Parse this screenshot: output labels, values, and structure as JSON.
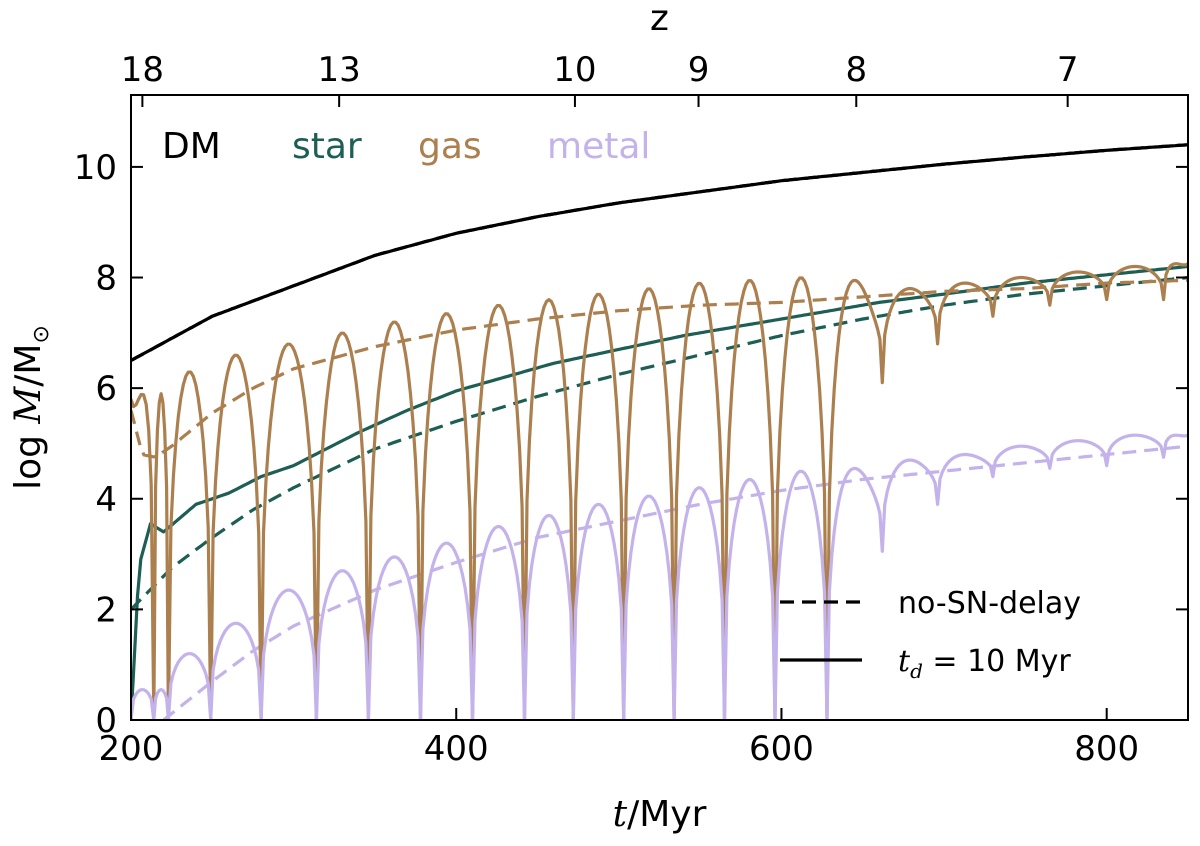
{
  "chart_data": {
    "type": "line",
    "xlabel_pre": "t",
    "xlabel_post": "/Myr",
    "ylabel_pre": "log",
    "ylabel_var": "M",
    "ylabel_post": "/M",
    "ylabel_sub": "⊙",
    "top_axis_label": "z",
    "xlim": [
      200,
      850
    ],
    "ylim": [
      0,
      11.3
    ],
    "x_ticks": [
      200,
      400,
      600,
      800
    ],
    "x_tick_labels": [
      "200",
      "400",
      "600",
      "800"
    ],
    "y_ticks": [
      0,
      2,
      4,
      6,
      8,
      10
    ],
    "y_tick_labels": [
      "0",
      "2",
      "4",
      "6",
      "8",
      "10"
    ],
    "top_ticks": [
      {
        "label": "18",
        "t": 207
      },
      {
        "label": "13",
        "t": 328
      },
      {
        "label": "10",
        "t": 473
      },
      {
        "label": "9",
        "t": 549
      },
      {
        "label": "8",
        "t": 646
      },
      {
        "label": "7",
        "t": 776
      }
    ],
    "component_labels": [
      {
        "name": "DM",
        "color": "#000000"
      },
      {
        "name": "star",
        "color": "#1d5e55"
      },
      {
        "name": "gas",
        "color": "#ac7f4e"
      },
      {
        "name": "metal",
        "color": "#c4b2ea"
      }
    ],
    "legend": {
      "position": "lower-right",
      "entries": [
        {
          "style": "dashed",
          "label": "no-SN-delay"
        },
        {
          "style": "solid",
          "label_pre": "t",
          "label_sub": "d",
          "label_post": " = 10 Myr"
        }
      ]
    },
    "series": [
      {
        "component": "DM",
        "style": "solid",
        "color": "#000000",
        "x": [
          200,
          225,
          250,
          300,
          350,
          400,
          450,
          500,
          550,
          600,
          650,
          700,
          750,
          800,
          850
        ],
        "y": [
          6.5,
          6.9,
          7.3,
          7.85,
          8.4,
          8.8,
          9.1,
          9.35,
          9.55,
          9.75,
          9.9,
          10.05,
          10.18,
          10.3,
          10.4
        ]
      },
      {
        "component": "DM",
        "style": "dashed",
        "color": "#000000",
        "x": [
          200,
          225,
          250,
          300,
          350,
          400,
          450,
          500,
          550,
          600,
          650,
          700,
          750,
          800,
          850
        ],
        "y": [
          6.5,
          6.9,
          7.3,
          7.85,
          8.4,
          8.8,
          9.1,
          9.35,
          9.55,
          9.75,
          9.9,
          10.05,
          10.18,
          10.3,
          10.4
        ]
      },
      {
        "component": "star",
        "style": "solid",
        "color": "#1d5e55",
        "x": [
          200,
          205,
          212,
          220,
          228,
          240,
          260,
          280,
          300,
          320,
          340,
          370,
          400,
          430,
          460,
          500,
          540,
          580,
          620,
          660,
          700,
          750,
          800,
          850
        ],
        "y": [
          0,
          2.8,
          3.55,
          3.4,
          3.6,
          3.9,
          4.1,
          4.4,
          4.6,
          4.9,
          5.2,
          5.6,
          5.95,
          6.2,
          6.45,
          6.7,
          6.95,
          7.15,
          7.35,
          7.55,
          7.7,
          7.9,
          8.05,
          8.2
        ]
      },
      {
        "component": "star",
        "style": "dashed",
        "color": "#1d5e55",
        "x": [
          200,
          210,
          225,
          250,
          275,
          300,
          350,
          400,
          450,
          500,
          550,
          600,
          650,
          700,
          750,
          800,
          850
        ],
        "y": [
          2.0,
          2.3,
          2.75,
          3.3,
          3.8,
          4.2,
          4.9,
          5.4,
          5.85,
          6.25,
          6.6,
          6.95,
          7.25,
          7.5,
          7.7,
          7.85,
          8.0
        ]
      },
      {
        "component": "gas",
        "style": "dashed",
        "color": "#ac7f4e",
        "x": [
          200,
          207,
          215,
          225,
          250,
          275,
          300,
          350,
          400,
          450,
          500,
          550,
          600,
          650,
          700,
          750,
          800,
          850
        ],
        "y": [
          5.6,
          4.8,
          4.75,
          4.95,
          5.55,
          6.0,
          6.35,
          6.75,
          7.05,
          7.25,
          7.4,
          7.5,
          7.55,
          7.65,
          7.75,
          7.8,
          7.9,
          7.95
        ]
      },
      {
        "component": "metal",
        "style": "dashed",
        "color": "#c4b2ea",
        "x": [
          220,
          235,
          250,
          275,
          300,
          350,
          400,
          450,
          500,
          550,
          600,
          650,
          700,
          750,
          800,
          850
        ],
        "y": [
          0,
          0.35,
          0.7,
          1.25,
          1.7,
          2.35,
          2.85,
          3.3,
          3.6,
          3.9,
          4.15,
          4.35,
          4.5,
          4.65,
          4.8,
          4.95
        ]
      },
      {
        "component": "gas",
        "style": "solid",
        "color": "#ac7f4e",
        "oscillating": true,
        "cycle_minima": [
          214,
          223,
          249,
          280,
          314,
          346,
          378,
          410,
          442,
          472,
          503,
          534,
          565,
          596,
          628,
          662,
          696,
          730,
          765,
          800,
          835
        ],
        "cycle_minimum_values": [
          0,
          0,
          0,
          0,
          0,
          0,
          0,
          0,
          0,
          0,
          0,
          0,
          0,
          0,
          0,
          6.1,
          6.8,
          7.3,
          7.5,
          7.6,
          7.6
        ],
        "cycle_peaks": [
          5.9,
          5.9,
          6.3,
          6.6,
          6.8,
          7.0,
          7.2,
          7.35,
          7.5,
          7.6,
          7.7,
          7.8,
          7.9,
          7.95,
          8.0,
          7.95,
          7.8,
          7.9,
          8.0,
          8.1,
          8.2,
          8.25
        ]
      },
      {
        "component": "metal",
        "style": "solid",
        "color": "#c4b2ea",
        "oscillating": true,
        "cycle_minima": [
          214,
          223,
          249,
          280,
          314,
          346,
          378,
          410,
          442,
          472,
          503,
          534,
          565,
          596,
          628,
          662,
          696,
          730,
          765,
          800,
          835
        ],
        "cycle_minimum_values": [
          0,
          0,
          0,
          0,
          0,
          0,
          0,
          0,
          0,
          0,
          0,
          0,
          0,
          0,
          0,
          3.05,
          3.9,
          4.4,
          4.55,
          4.6,
          4.75
        ],
        "cycle_peaks": [
          0.55,
          0.55,
          1.2,
          1.75,
          2.35,
          2.7,
          2.95,
          3.2,
          3.5,
          3.7,
          3.9,
          4.05,
          4.2,
          4.35,
          4.5,
          4.55,
          4.7,
          4.8,
          4.95,
          5.05,
          5.15,
          5.15
        ]
      }
    ]
  }
}
